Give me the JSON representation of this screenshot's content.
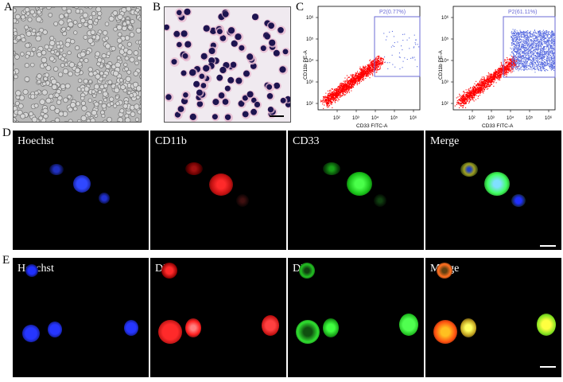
{
  "panel_labels": {
    "a": "A",
    "b": "B",
    "c": "C",
    "d": "D",
    "e": "E"
  },
  "flow": {
    "left": {
      "gate": "P2(0.77%)",
      "ylabel": "CD11b PE-A",
      "xlabel": "CD33 FITC-A"
    },
    "right": {
      "gate": "P2(61.11%)",
      "ylabel": "CD11b PE-A",
      "xlabel": "CD33 FITC-A"
    },
    "x_ticks": [
      "10²",
      "10³",
      "10⁴",
      "10⁵",
      "10⁶"
    ],
    "y_ticks": [
      "10²",
      "10³",
      "10⁴",
      "10⁵",
      "10⁶"
    ]
  },
  "row_d": {
    "channels": [
      "Hoechst",
      "CD11b",
      "CD33",
      "Merge"
    ]
  },
  "row_e": {
    "channels": [
      "Hoechst",
      "DIL",
      "DIO",
      "Merge"
    ]
  },
  "colors": {
    "hoechst": "#1a2cff",
    "red": "#ff2020",
    "green": "#22ff22",
    "flow_red": "#ff0000",
    "flow_blue": "#5b6ee0",
    "gate": "#6b6bd6"
  }
}
